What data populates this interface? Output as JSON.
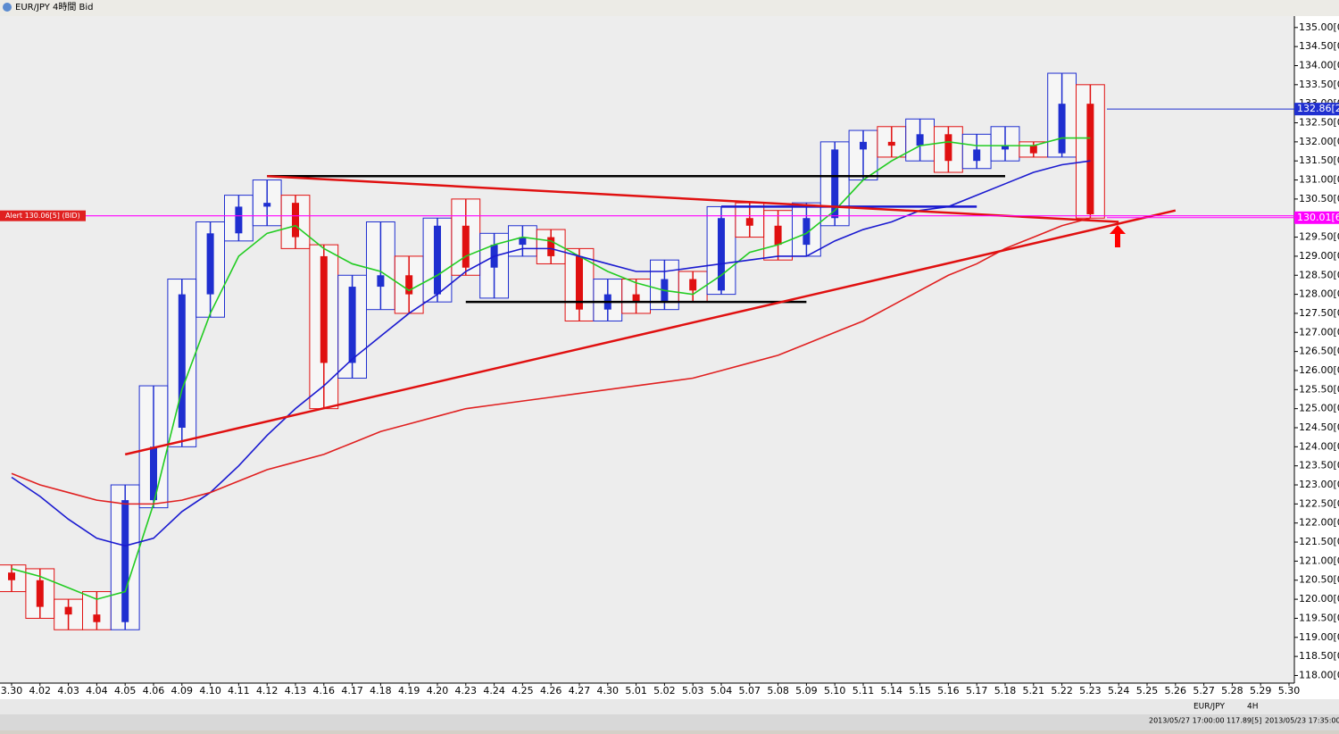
{
  "window_title": "EUR/JPY 4時間 Bid",
  "chart_data": {
    "type": "candlestick",
    "categories": [
      "3.30",
      "4.02",
      "4.03",
      "4.04",
      "4.05",
      "4.06",
      "4.09",
      "4.10",
      "4.11",
      "4.12",
      "4.13",
      "4.16",
      "4.17",
      "4.18",
      "4.19",
      "4.20",
      "4.23",
      "4.24",
      "4.25",
      "4.26",
      "4.27",
      "4.30",
      "5.01",
      "5.02",
      "5.03",
      "5.04",
      "5.07",
      "5.08",
      "5.09",
      "5.10",
      "5.11",
      "5.14",
      "5.15",
      "5.16",
      "5.17",
      "5.18",
      "5.21",
      "5.22",
      "5.23",
      "5.24",
      "5.25",
      "5.26",
      "5.27",
      "5.28",
      "5.29",
      "5.30"
    ],
    "open": [
      120.7,
      120.5,
      119.8,
      119.6,
      119.4,
      122.6,
      124.5,
      128.0,
      129.6,
      130.3,
      130.4,
      129.0,
      126.2,
      128.2,
      128.5,
      128.0,
      129.8,
      128.7,
      129.3,
      129.5,
      129.0,
      127.6,
      128.0,
      127.8,
      128.4,
      128.1,
      130.0,
      129.8,
      129.3,
      130.0,
      131.8,
      132.0,
      131.9,
      132.2,
      131.5,
      131.8,
      131.9,
      131.7,
      133.0,
      null,
      null,
      null,
      null,
      null,
      null,
      null
    ],
    "high": [
      120.9,
      120.8,
      120.0,
      120.2,
      123.0,
      125.6,
      128.4,
      129.9,
      130.6,
      131.0,
      130.6,
      129.3,
      128.5,
      129.9,
      129.0,
      130.0,
      130.5,
      129.6,
      129.8,
      129.7,
      129.2,
      128.4,
      128.4,
      128.9,
      128.6,
      130.3,
      130.4,
      130.2,
      130.4,
      132.0,
      132.3,
      132.4,
      132.6,
      132.4,
      132.2,
      132.4,
      132.0,
      133.8,
      133.5,
      null,
      null,
      null,
      null,
      null,
      null,
      null
    ],
    "low": [
      120.2,
      119.5,
      119.2,
      119.2,
      119.2,
      122.4,
      124.0,
      127.4,
      129.4,
      129.8,
      129.2,
      125.0,
      125.8,
      127.6,
      127.5,
      127.8,
      128.5,
      127.9,
      129.0,
      128.8,
      127.3,
      127.3,
      127.5,
      127.6,
      127.8,
      128.0,
      129.5,
      128.9,
      129.0,
      129.8,
      131.0,
      131.6,
      131.5,
      131.2,
      131.3,
      131.5,
      131.6,
      131.6,
      130.0,
      null,
      null,
      null,
      null,
      null,
      null,
      null
    ],
    "close": [
      120.5,
      119.8,
      119.6,
      119.4,
      122.6,
      124.0,
      128.0,
      129.6,
      130.3,
      130.4,
      129.5,
      126.2,
      128.2,
      128.5,
      128.0,
      129.8,
      128.7,
      129.3,
      129.5,
      129.0,
      127.6,
      128.0,
      127.8,
      128.4,
      128.1,
      130.0,
      129.8,
      129.3,
      130.0,
      131.8,
      132.0,
      131.9,
      132.2,
      131.5,
      131.8,
      131.9,
      131.7,
      133.0,
      130.1,
      null,
      null,
      null,
      null,
      null,
      null,
      null
    ],
    "up_color": "#1f2fd0",
    "down_color": "#e01010",
    "series": [
      {
        "color": "#22cc22",
        "values": [
          120.8,
          120.6,
          120.3,
          120.0,
          120.2,
          122.5,
          125.5,
          127.5,
          129.0,
          129.6,
          129.8,
          129.2,
          128.8,
          128.6,
          128.1,
          128.5,
          129.0,
          129.3,
          129.5,
          129.4,
          129.0,
          128.6,
          128.3,
          128.1,
          128.0,
          128.5,
          129.1,
          129.3,
          129.6,
          130.2,
          131.0,
          131.5,
          131.9,
          132.0,
          131.9,
          131.9,
          131.9,
          132.1,
          132.1,
          null,
          null,
          null,
          null,
          null,
          null,
          null
        ]
      },
      {
        "color": "#1a1ad0",
        "values": [
          123.2,
          122.7,
          122.1,
          121.6,
          121.4,
          121.6,
          122.3,
          122.8,
          123.5,
          124.3,
          125.0,
          125.6,
          126.3,
          126.9,
          127.5,
          128.0,
          128.6,
          129.0,
          129.2,
          129.2,
          129.0,
          128.8,
          128.6,
          128.6,
          128.7,
          128.8,
          128.9,
          129.0,
          129.0,
          129.4,
          129.7,
          129.9,
          130.2,
          130.3,
          130.6,
          130.9,
          131.2,
          131.4,
          131.5,
          null,
          null,
          null,
          null,
          null,
          null,
          null
        ]
      },
      {
        "color": "#e02020",
        "values": [
          123.3,
          123.0,
          122.8,
          122.6,
          122.5,
          122.5,
          122.6,
          122.8,
          123.1,
          123.4,
          123.6,
          123.8,
          124.1,
          124.4,
          124.6,
          124.8,
          125.0,
          125.1,
          125.2,
          125.3,
          125.4,
          125.5,
          125.6,
          125.7,
          125.8,
          126.0,
          126.2,
          126.4,
          126.7,
          127.0,
          127.3,
          127.7,
          128.1,
          128.5,
          128.8,
          129.2,
          129.5,
          129.8,
          130.0,
          null,
          null,
          null,
          null,
          null,
          null,
          null
        ]
      }
    ],
    "trend_lines": [
      {
        "color": "#000000",
        "x": [
          "4.12",
          "5.18"
        ],
        "values": [
          131.1,
          131.1
        ]
      },
      {
        "color": "#000000",
        "x": [
          "4.23",
          "5.09"
        ],
        "values": [
          127.8,
          127.8
        ]
      },
      {
        "color": "#1a1ad0",
        "x": [
          "5.04",
          "5.17"
        ],
        "values": [
          130.3,
          130.3
        ]
      },
      {
        "color": "#e01010",
        "x": [
          "4.12",
          "5.24"
        ],
        "values": [
          131.1,
          129.9
        ]
      },
      {
        "color": "#e01010",
        "x": [
          "4.05",
          "5.26"
        ],
        "values": [
          123.8,
          130.2
        ]
      }
    ],
    "alert": {
      "value": 130.06,
      "label": "Alert 130.06[5] (BID)",
      "color": "#ff00ff"
    },
    "price_markers": [
      {
        "value": 132.86,
        "label": "132.86[2",
        "color": "#1f2fd0"
      },
      {
        "value": 130.01,
        "label": "130.01[6",
        "color": "#ff00ff"
      }
    ],
    "ylim": [
      117.8,
      135.3
    ],
    "yticks": [
      {
        "value": 118,
        "label": "118.00[0"
      },
      {
        "value": 118.5,
        "label": "118.50[0"
      },
      {
        "value": 119,
        "label": "119.00[0"
      },
      {
        "value": 119.5,
        "label": "119.50[0"
      },
      {
        "value": 120,
        "label": "120.00[0"
      },
      {
        "value": 120.5,
        "label": "120.50[0"
      },
      {
        "value": 121,
        "label": "121.00[0"
      },
      {
        "value": 121.5,
        "label": "121.50[0"
      },
      {
        "value": 122,
        "label": "122.00[0"
      },
      {
        "value": 122.5,
        "label": "122.50[0"
      },
      {
        "value": 123,
        "label": "123.00[0"
      },
      {
        "value": 123.5,
        "label": "123.50[0"
      },
      {
        "value": 124,
        "label": "124.00[0"
      },
      {
        "value": 124.5,
        "label": "124.50[0"
      },
      {
        "value": 125,
        "label": "125.00[0"
      },
      {
        "value": 125.5,
        "label": "125.50[0"
      },
      {
        "value": 126,
        "label": "126.00[0"
      },
      {
        "value": 126.5,
        "label": "126.50[0"
      },
      {
        "value": 127,
        "label": "127.00[0"
      },
      {
        "value": 127.5,
        "label": "127.50[0"
      },
      {
        "value": 128,
        "label": "128.00[0"
      },
      {
        "value": 128.5,
        "label": "128.50[0"
      },
      {
        "value": 129,
        "label": "129.00[0"
      },
      {
        "value": 129.5,
        "label": "129.50[0"
      },
      {
        "value": 130,
        "label": "130.00[0"
      },
      {
        "value": 130.5,
        "label": "130.50[0"
      },
      {
        "value": 131,
        "label": "131.00[0"
      },
      {
        "value": 131.5,
        "label": "131.50[0"
      },
      {
        "value": 132,
        "label": "132.00[0"
      },
      {
        "value": 132.5,
        "label": "132.50[0"
      },
      {
        "value": 133,
        "label": "133.00[0"
      },
      {
        "value": 133.5,
        "label": "133.50[0"
      },
      {
        "value": 134,
        "label": "134.00[0"
      },
      {
        "value": 134.5,
        "label": "134.50[0"
      },
      {
        "value": 135,
        "label": "135.00[0"
      }
    ]
  },
  "status_bar": {
    "symbol": "EUR/JPY",
    "timeframe": "4H",
    "cursor_time": "2013/05/27 17:00:00",
    "cursor_price": "117.89[5]",
    "server_time": "2013/05/23 17:35:00"
  }
}
